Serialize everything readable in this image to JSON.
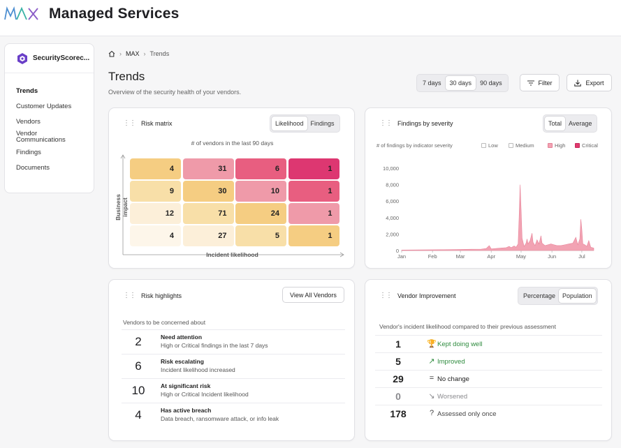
{
  "header": {
    "logo_text": "MAX",
    "app_title": "Managed Services"
  },
  "sidebar": {
    "brand_name": "SecurityScorec...",
    "items": [
      {
        "label": "Trends"
      },
      {
        "label": "Customer Updates"
      },
      {
        "label": "Vendors"
      },
      {
        "label": "Vendor Communications"
      },
      {
        "label": "Findings"
      },
      {
        "label": "Documents"
      }
    ]
  },
  "breadcrumb": {
    "current_root": "MAX",
    "page": "Trends"
  },
  "page": {
    "title": "Trends",
    "subtitle": "Overview of the security health of your vendors."
  },
  "toolbar": {
    "ranges": [
      {
        "label": "7 days"
      },
      {
        "label": "30 days"
      },
      {
        "label": "90 days"
      }
    ],
    "selected_range": "30 days",
    "filter_label": "Filter",
    "export_label": "Export"
  },
  "risk_matrix": {
    "title": "Risk matrix",
    "tabs": [
      {
        "label": "Likelihood"
      },
      {
        "label": "Findings"
      }
    ],
    "selected_tab": "Likelihood",
    "caption": "# of vendors in the last 90 days",
    "y_axis": "Business impact",
    "x_axis": "Incident likelihood",
    "rows": [
      [
        4,
        31,
        6,
        1
      ],
      [
        9,
        30,
        10,
        1
      ],
      [
        12,
        71,
        24,
        1
      ],
      [
        4,
        27,
        5,
        1
      ]
    ],
    "colors": [
      [
        "#f5cd82",
        "#ef9aa9",
        "#e85e80",
        "#dd3771"
      ],
      [
        "#f8dfa8",
        "#f5cd82",
        "#ef9aa9",
        "#e85e80"
      ],
      [
        "#fcefd9",
        "#f8dfa8",
        "#f5cd82",
        "#ef9aa9"
      ],
      [
        "#fdf6ea",
        "#fcefd9",
        "#f8dfa8",
        "#f5cd82"
      ]
    ]
  },
  "findings": {
    "title": "Findings by severity",
    "tabs": [
      {
        "label": "Total"
      },
      {
        "label": "Average"
      }
    ],
    "selected_tab": "Total",
    "caption": "# of findings by indicator severity",
    "legend": [
      {
        "label": "Low",
        "color": "#ffffff"
      },
      {
        "label": "Medium",
        "color": "#ffffff"
      },
      {
        "label": "High",
        "color": "#f2a3b3"
      },
      {
        "label": "Critical",
        "color": "#e03a6e"
      }
    ]
  },
  "chart_data": {
    "type": "area",
    "title": "Findings by severity",
    "xlabel": "",
    "ylabel": "# of findings by indicator severity",
    "ylim": [
      0,
      10000
    ],
    "yticks": [
      "0",
      "2,000",
      "4,000",
      "6,000",
      "8,000",
      "10,000"
    ],
    "ytick_values": [
      0,
      2000,
      4000,
      6000,
      8000,
      10000
    ],
    "xticks": [
      {
        "label": "Jan",
        "day": 0
      },
      {
        "label": "Feb",
        "day": 31
      },
      {
        "label": "Mar",
        "day": 59
      },
      {
        "label": "Apr",
        "day": 90
      },
      {
        "label": "May",
        "day": 120
      },
      {
        "label": "Jun",
        "day": 151
      },
      {
        "label": "Jul",
        "day": 181
      }
    ],
    "x_max_day": 193,
    "series": [
      {
        "name": "High",
        "color": "#f2a3b3",
        "points": [
          [
            0,
            60
          ],
          [
            10,
            70
          ],
          [
            20,
            80
          ],
          [
            30,
            90
          ],
          [
            40,
            100
          ],
          [
            50,
            110
          ],
          [
            60,
            130
          ],
          [
            70,
            150
          ],
          [
            80,
            170
          ],
          [
            85,
            250
          ],
          [
            88,
            600
          ],
          [
            90,
            200
          ],
          [
            95,
            250
          ],
          [
            100,
            300
          ],
          [
            105,
            350
          ],
          [
            108,
            500
          ],
          [
            110,
            350
          ],
          [
            113,
            550
          ],
          [
            115,
            400
          ],
          [
            117,
            800
          ],
          [
            118,
            4000
          ],
          [
            119,
            8000
          ],
          [
            120,
            5000
          ],
          [
            121,
            1500
          ],
          [
            123,
            500
          ],
          [
            125,
            900
          ],
          [
            126,
            1400
          ],
          [
            127,
            800
          ],
          [
            129,
            1200
          ],
          [
            131,
            2100
          ],
          [
            132,
            1000
          ],
          [
            134,
            600
          ],
          [
            136,
            1300
          ],
          [
            138,
            800
          ],
          [
            140,
            1800
          ],
          [
            141,
            900
          ],
          [
            144,
            600
          ],
          [
            147,
            700
          ],
          [
            150,
            800
          ],
          [
            153,
            700
          ],
          [
            156,
            600
          ],
          [
            160,
            600
          ],
          [
            164,
            700
          ],
          [
            168,
            800
          ],
          [
            172,
            900
          ],
          [
            175,
            1600
          ],
          [
            177,
            700
          ],
          [
            179,
            1400
          ],
          [
            180,
            3800
          ],
          [
            181,
            2600
          ],
          [
            182,
            800
          ],
          [
            184,
            700
          ],
          [
            186,
            500
          ],
          [
            188,
            1200
          ],
          [
            190,
            400
          ],
          [
            193,
            300
          ]
        ]
      }
    ]
  },
  "risk_highlights": {
    "title": "Risk highlights",
    "view_all_label": "View All Vendors",
    "section_label": "Vendors to be concerned about",
    "rows": [
      {
        "count": "2",
        "title": "Need attention",
        "desc": "High or Critical findings in the last 7 days"
      },
      {
        "count": "6",
        "title": "Risk escalating",
        "desc": "Incident likelihood increased"
      },
      {
        "count": "10",
        "title": "At significant risk",
        "desc": "High or Critical Incident likelihood"
      },
      {
        "count": "4",
        "title": "Has active breach",
        "desc": "Data breach, ransomware attack, or info leak"
      }
    ]
  },
  "vendor_improvement": {
    "title": "Vendor Improvement",
    "tabs": [
      {
        "label": "Percentage"
      },
      {
        "label": "Population"
      }
    ],
    "selected_tab": "Population",
    "caption": "Vendor's incident likelihood compared to their previous assessment",
    "rows": [
      {
        "count": "1",
        "icon": "trophy-icon",
        "glyph": "🏆",
        "label": "Kept doing well",
        "color": "#2e8b3e"
      },
      {
        "count": "5",
        "icon": "trend-up-icon",
        "glyph": "↗",
        "label": "Improved",
        "color": "#2e8b3e"
      },
      {
        "count": "29",
        "icon": "equals-icon",
        "glyph": "=",
        "label": "No change",
        "color": "#222222"
      },
      {
        "count": "0",
        "icon": "trend-down-icon",
        "glyph": "↘",
        "label": "Worsened",
        "color": "#8a8a8e"
      },
      {
        "count": "178",
        "icon": "question-icon",
        "glyph": "?",
        "label": "Assessed only once",
        "color": "#444444"
      }
    ]
  }
}
